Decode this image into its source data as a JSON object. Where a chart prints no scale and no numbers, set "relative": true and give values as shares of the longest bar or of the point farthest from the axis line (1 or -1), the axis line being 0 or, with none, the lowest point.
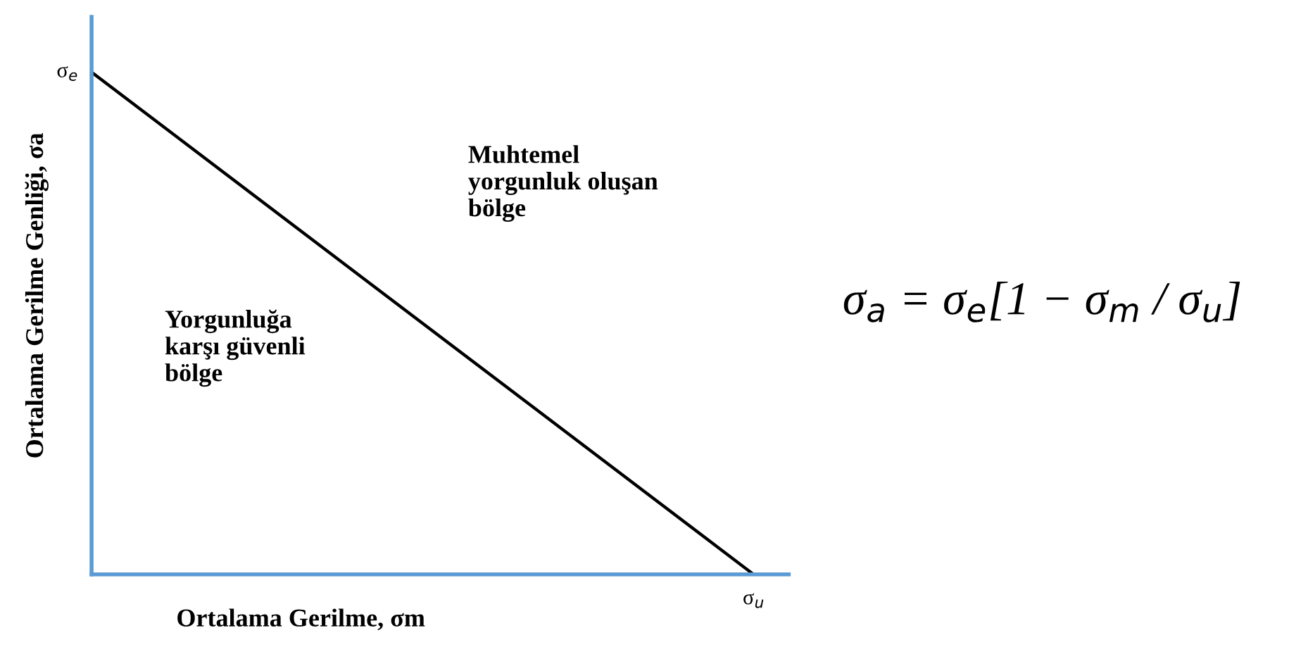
{
  "chart_data": {
    "type": "line",
    "relative": true,
    "categories": [
      null,
      null
    ],
    "series": [
      {
        "color": "#000000",
        "values": [
          1,
          0
        ]
      }
    ],
    "xlabel": "Ortalama Gerilme, σm",
    "ylabel": "Ortalama Gerilme Genliği, σa",
    "annotations": [
      "σ$_{e}$",
      "σ$_{u}$",
      "Muhtemel\nyorgunluk oluşan\nbölge",
      "Yorgunluğa\nkarşı güvenli\nbölge",
      "σ$_{a}$ = σ$_{e}$[1 − σ$_{m}$ / σ$_{u}$]"
    ],
    "grid": false,
    "legend": false,
    "marker": "none",
    "line_style": "solid"
  }
}
